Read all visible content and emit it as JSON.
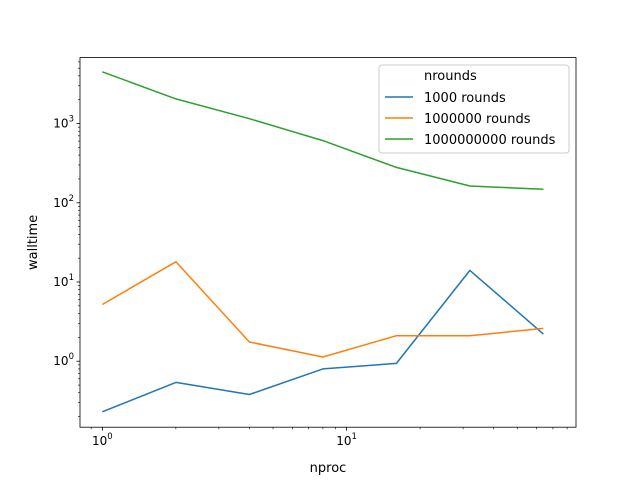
{
  "chart_data": {
    "type": "line",
    "title": "",
    "xlabel": "nproc",
    "ylabel": "walltime",
    "xscale": "log",
    "yscale": "log",
    "xlim": [
      0.81,
      87
    ],
    "ylim": [
      0.147,
      6800
    ],
    "grid": false,
    "x": [
      1,
      2,
      4,
      8,
      16,
      32,
      64
    ],
    "x_ticks": [
      {
        "value": 1,
        "base": "10",
        "exp": "0"
      },
      {
        "value": 10,
        "base": "10",
        "exp": "1"
      }
    ],
    "y_ticks": [
      {
        "value": 1,
        "base": "10",
        "exp": "0"
      },
      {
        "value": 10,
        "base": "10",
        "exp": "1"
      },
      {
        "value": 100,
        "base": "10",
        "exp": "2"
      },
      {
        "value": 1000,
        "base": "10",
        "exp": "3"
      }
    ],
    "legend": {
      "title": "nrounds",
      "placement": "upper right"
    },
    "series": [
      {
        "name": "1000 rounds",
        "color": "#1f77b4",
        "values": [
          0.23,
          0.54,
          0.38,
          0.8,
          0.94,
          14.0,
          2.2
        ]
      },
      {
        "name": "1000000 rounds",
        "color": "#ff7f0e",
        "values": [
          5.2,
          18.0,
          1.75,
          1.13,
          2.1,
          2.1,
          2.6
        ]
      },
      {
        "name": "1000000000 rounds",
        "color": "#2ca02c",
        "values": [
          4500,
          2050,
          1150,
          610,
          280,
          163,
          148
        ]
      }
    ]
  }
}
